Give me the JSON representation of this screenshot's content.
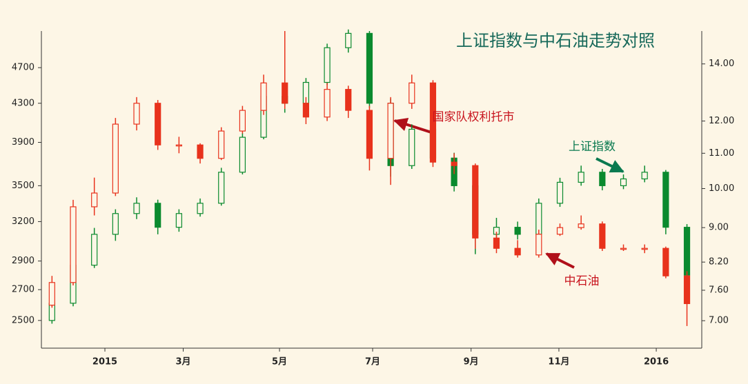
{
  "chart_data": {
    "type": "candlestick",
    "title": "上证指数与中石油走势对照",
    "x": [
      1,
      3,
      5,
      7,
      9,
      11,
      13,
      15,
      17,
      19,
      21,
      23,
      25,
      27,
      29,
      31,
      33,
      35,
      37,
      39,
      41,
      43,
      45,
      47,
      49,
      51,
      53,
      55,
      57,
      59,
      61
    ],
    "xlim": [
      0,
      62.4
    ],
    "xticks": [
      {
        "value": 6,
        "label": "2015"
      },
      {
        "value": 13.4,
        "label": "3月"
      },
      {
        "value": 22.5,
        "label": "5月"
      },
      {
        "value": 31.3,
        "label": "7月"
      },
      {
        "value": 40.6,
        "label": "9月"
      },
      {
        "value": 48.9,
        "label": "11月"
      },
      {
        "value": 58.1,
        "label": "2016"
      }
    ],
    "ylim": [
      2333,
      5150
    ],
    "ylog": true,
    "yticks": [
      2500,
      2700,
      2900,
      3200,
      3500,
      3900,
      4300,
      4700
    ],
    "y2lim": [
      6.5,
      15.3
    ],
    "y2log": true,
    "y2ticks": [
      {
        "value": 7,
        "label": "7.00"
      },
      {
        "value": 7.6,
        "label": "7.60"
      },
      {
        "value": 8.2,
        "label": "8.20"
      },
      {
        "value": 9,
        "label": "9.00"
      },
      {
        "value": 10,
        "label": "10.00"
      },
      {
        "value": 11,
        "label": "11.00"
      },
      {
        "value": 12,
        "label": "12.00"
      },
      {
        "value": 14,
        "label": "14.00"
      }
    ],
    "series": [
      {
        "name": "上证指数",
        "color": "#0a8a2e",
        "axis": "y",
        "open": [
          2500,
          2610,
          2870,
          3100,
          3265,
          3350,
          3155,
          3265,
          3350,
          3620,
          3950,
          4375,
          4300,
          4530,
          4940,
          5120,
          4300,
          3680,
          4030,
          3750,
          3500,
          3100,
          3155,
          3100,
          3350,
          3530,
          3620,
          3500,
          3560,
          3620,
          3155
        ],
        "close": [
          2610,
          2870,
          3100,
          3265,
          3350,
          3155,
          3265,
          3350,
          3620,
          3950,
          4375,
          4300,
          4530,
          4940,
          5120,
          4300,
          3680,
          4030,
          3750,
          3500,
          3100,
          3155,
          3100,
          3350,
          3530,
          3620,
          3500,
          3560,
          3620,
          3155,
          2800
        ],
        "high": [
          2650,
          2900,
          3150,
          3300,
          3400,
          3380,
          3300,
          3390,
          3660,
          3990,
          4420,
          4500,
          4580,
          4990,
          5170,
          5150,
          4350,
          4080,
          4060,
          3800,
          3530,
          3230,
          3200,
          3390,
          3570,
          3680,
          3650,
          3600,
          3680,
          3640,
          3180
        ],
        "low": [
          2480,
          2590,
          2850,
          3050,
          3220,
          3100,
          3120,
          3240,
          3330,
          3600,
          3930,
          4200,
          4260,
          4500,
          4880,
          4250,
          3580,
          3650,
          3700,
          3450,
          2950,
          3050,
          3060,
          3080,
          3320,
          3500,
          3460,
          3470,
          3530,
          3100,
          2760
        ]
      },
      {
        "name": "中石油",
        "color": "#e8321c",
        "axis": "y2",
        "open": [
          7.3,
          7.76,
          9.52,
          9.88,
          11.9,
          12.59,
          11.25,
          11.25,
          10.85,
          11.68,
          12.35,
          13.3,
          12.59,
          12.13,
          13.07,
          12.35,
          10.85,
          12.59,
          13.3,
          10.74,
          10.64,
          8.75,
          8.51,
          8.36,
          8.84,
          9.0,
          9.09,
          8.51,
          8.51,
          8.51,
          7.9
        ],
        "close": [
          7.76,
          9.52,
          9.88,
          11.9,
          12.59,
          11.25,
          11.25,
          10.85,
          11.68,
          12.35,
          13.3,
          12.59,
          12.13,
          13.07,
          12.35,
          10.85,
          12.59,
          13.3,
          10.74,
          10.64,
          8.75,
          8.51,
          8.36,
          8.84,
          9.0,
          9.09,
          8.51,
          8.51,
          8.51,
          7.9,
          7.33
        ],
        "high": [
          7.9,
          9.7,
          10.3,
          12.1,
          12.8,
          12.7,
          11.5,
          11.3,
          11.8,
          12.5,
          13.6,
          15.3,
          12.8,
          13.3,
          13.2,
          12.5,
          12.8,
          13.6,
          13.4,
          11.0,
          10.7,
          8.9,
          8.7,
          8.95,
          9.1,
          9.3,
          9.15,
          8.6,
          8.6,
          8.55,
          8.0
        ],
        "low": [
          7.25,
          7.7,
          9.3,
          9.8,
          11.7,
          11.1,
          11.0,
          10.7,
          10.8,
          11.6,
          12.2,
          12.4,
          11.9,
          12.0,
          12.1,
          10.5,
          10.1,
          12.4,
          10.6,
          10.4,
          8.5,
          8.4,
          8.3,
          8.3,
          8.8,
          8.95,
          8.45,
          8.45,
          8.4,
          7.85,
          6.9
        ]
      }
    ],
    "annotations": [
      {
        "text": "国家队权利托市",
        "color": "#c8141e"
      }
    ]
  }
}
